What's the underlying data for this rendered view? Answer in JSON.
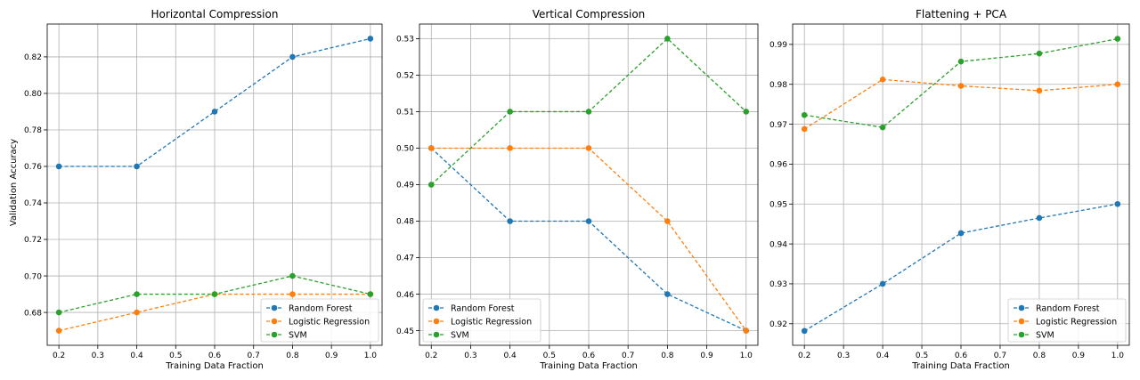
{
  "figure_ylabel": "Validation Accuracy",
  "chart_data": [
    {
      "type": "line",
      "title": "Horizontal Compression",
      "xlabel": "Training Data Fraction",
      "ylabel": "Validation Accuracy",
      "x": [
        0.2,
        0.4,
        0.6,
        0.8,
        1.0
      ],
      "xlim": [
        0.17,
        1.03
      ],
      "ylim": [
        0.662,
        0.838
      ],
      "xticks": [
        0.2,
        0.3,
        0.4,
        0.5,
        0.6,
        0.7,
        0.8,
        0.9,
        1.0
      ],
      "yticks": [
        0.68,
        0.7,
        0.72,
        0.74,
        0.76,
        0.78,
        0.8,
        0.82
      ],
      "ytick_decimals": 2,
      "grid": true,
      "legend_position": "lower-right",
      "series": [
        {
          "name": "Random Forest",
          "color": "#1f77b4",
          "values": [
            0.76,
            0.76,
            0.79,
            0.82,
            0.83
          ]
        },
        {
          "name": "Logistic Regression",
          "color": "#ff7f0e",
          "values": [
            0.67,
            0.68,
            0.69,
            0.69,
            0.69
          ]
        },
        {
          "name": "SVM",
          "color": "#2ca02c",
          "values": [
            0.68,
            0.69,
            0.69,
            0.7,
            0.69
          ]
        }
      ]
    },
    {
      "type": "line",
      "title": "Vertical Compression",
      "xlabel": "Training Data Fraction",
      "ylabel": "",
      "x": [
        0.2,
        0.4,
        0.6,
        0.8,
        1.0
      ],
      "xlim": [
        0.17,
        1.03
      ],
      "ylim": [
        0.446,
        0.534
      ],
      "xticks": [
        0.2,
        0.3,
        0.4,
        0.5,
        0.6,
        0.7,
        0.8,
        0.9,
        1.0
      ],
      "yticks": [
        0.45,
        0.46,
        0.47,
        0.48,
        0.49,
        0.5,
        0.51,
        0.52,
        0.53
      ],
      "ytick_decimals": 2,
      "grid": true,
      "legend_position": "lower-left",
      "series": [
        {
          "name": "Random Forest",
          "color": "#1f77b4",
          "values": [
            0.5,
            0.48,
            0.48,
            0.46,
            0.45
          ]
        },
        {
          "name": "Logistic Regression",
          "color": "#ff7f0e",
          "values": [
            0.5,
            0.5,
            0.5,
            0.48,
            0.45
          ]
        },
        {
          "name": "SVM",
          "color": "#2ca02c",
          "values": [
            0.49,
            0.51,
            0.51,
            0.53,
            0.51
          ]
        }
      ]
    },
    {
      "type": "line",
      "title": "Flattening + PCA",
      "xlabel": "Training Data Fraction",
      "ylabel": "",
      "x": [
        0.2,
        0.4,
        0.6,
        0.8,
        1.0
      ],
      "xlim": [
        0.17,
        1.03
      ],
      "ylim": [
        0.9146,
        0.9951
      ],
      "xticks": [
        0.2,
        0.3,
        0.4,
        0.5,
        0.6,
        0.7,
        0.8,
        0.9,
        1.0
      ],
      "yticks": [
        0.92,
        0.93,
        0.94,
        0.95,
        0.96,
        0.97,
        0.98,
        0.99
      ],
      "ytick_decimals": 2,
      "grid": true,
      "legend_position": "lower-right",
      "series": [
        {
          "name": "Random Forest",
          "color": "#1f77b4",
          "values": [
            0.9182,
            0.93,
            0.9427,
            0.9465,
            0.95
          ]
        },
        {
          "name": "Logistic Regression",
          "color": "#ff7f0e",
          "values": [
            0.9688,
            0.9812,
            0.9796,
            0.9784,
            0.98
          ]
        },
        {
          "name": "SVM",
          "color": "#2ca02c",
          "values": [
            0.9723,
            0.9692,
            0.9857,
            0.9877,
            0.9914
          ]
        }
      ]
    }
  ]
}
